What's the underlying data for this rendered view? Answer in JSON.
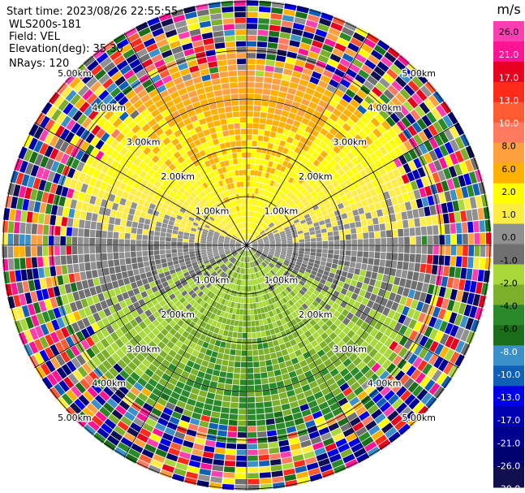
{
  "header": {
    "start_time": "Start time: 2023/08/26 22:55:55",
    "instrument": "WLS200s-181",
    "field": "Field: VEL",
    "elevation": "Elevation(deg): 35.30",
    "nrays": "NRays: 120"
  },
  "chart_data": {
    "type": "heatmap",
    "subtype": "polar-ppi",
    "title": "",
    "field": "VEL",
    "units_label": "m/s",
    "n_rays": 120,
    "elevation_deg": 35.3,
    "range_rings_km": [
      1.0,
      2.0,
      3.0,
      4.0,
      5.0
    ],
    "range_ring_labels": [
      "1.00km",
      "2.00km",
      "3.00km",
      "4.00km",
      "5.00km"
    ],
    "max_range_km": 5.6,
    "grid": true,
    "colorbar": {
      "ticks": [
        "26.0",
        "21.0",
        "17.0",
        "13.0",
        "10.0",
        "8.0",
        "6.0",
        "2.0",
        "1.0",
        "0.0",
        "-1.0",
        "-2.0",
        "-4.0",
        "-6.0",
        "-8.0",
        "-10.0",
        "-13.0",
        "-17.0",
        "-21.0",
        "-26.0",
        "-30.0"
      ],
      "colors": [
        "#ff3fb1",
        "#ff1493",
        "#e8001e",
        "#ff2a1a",
        "#ff5a32",
        "#ff7a5e",
        "#ffa040",
        "#ffb000",
        "#ffff00",
        "#ffec40",
        "#909090",
        "#707070",
        "#a8d83a",
        "#7cb02a",
        "#2a8a2a",
        "#1a6e1a",
        "#3a90c8",
        "#1060b8",
        "#0000e8",
        "#0000b0",
        "#000090",
        "#000070",
        "#101050"
      ],
      "placement": "right"
    },
    "pattern": {
      "north_sector": "positive velocities 2-10 m/s (orange/salmon)",
      "south_sector": "negative velocities -4 to -10 m/s (green/blue)",
      "outer_ranges": "noisy, mixed colors"
    }
  }
}
